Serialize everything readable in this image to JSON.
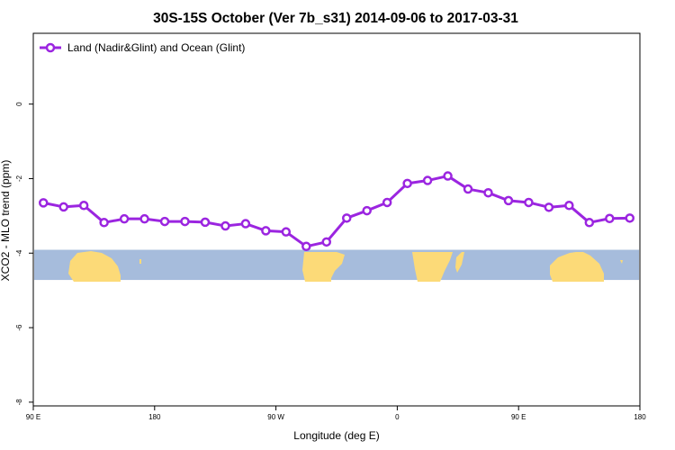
{
  "chart_data": {
    "type": "line",
    "title": "30S-15S October (Ver 7b_s31)   2014-09-06 to 2017-03-31",
    "xlabel": "Longitude (deg E)",
    "ylabel": "XCO2 - MLO trend (ppm)",
    "x_ticks": [
      {
        "value": 90,
        "label": "90 E"
      },
      {
        "value": 180,
        "label": "180"
      },
      {
        "value": 270,
        "label": "90 W"
      },
      {
        "value": 360,
        "label": "0"
      },
      {
        "value": 450,
        "label": "90 E"
      },
      {
        "value": 540,
        "label": "180"
      }
    ],
    "y_ticks": [
      {
        "value": 0,
        "label": "0"
      },
      {
        "value": -2,
        "label": "-2"
      },
      {
        "value": -4,
        "label": "-4"
      },
      {
        "value": -6,
        "label": "-6"
      },
      {
        "value": -8,
        "label": "-8"
      }
    ],
    "xlim": [
      90,
      540
    ],
    "ylim": [
      -8.1,
      1.9
    ],
    "grid": false,
    "legend_position": "top-left",
    "series": [
      {
        "name": "Land (Nadir&Glint) and Ocean (Glint)",
        "color": "#9b25e0",
        "marker": "open-circle",
        "x": [
          97.5,
          112.5,
          127.5,
          142.5,
          157.5,
          172.5,
          187.5,
          202.5,
          217.5,
          232.5,
          247.5,
          262.5,
          277.5,
          292.5,
          307.5,
          322.5,
          337.5,
          352.5,
          367.5,
          382.5,
          397.5,
          412.5,
          427.5,
          442.5,
          457.5,
          472.5,
          487.5,
          502.5,
          517.5,
          532.5
        ],
        "values": [
          -2.65,
          -2.76,
          -2.72,
          -3.18,
          -3.08,
          -3.08,
          -3.15,
          -3.15,
          -3.17,
          -3.27,
          -3.21,
          -3.4,
          -3.43,
          -3.82,
          -3.7,
          -3.06,
          -2.86,
          -2.64,
          -2.13,
          -2.05,
          -1.93,
          -2.28,
          -2.38,
          -2.59,
          -2.64,
          -2.77,
          -2.72,
          -3.18,
          -3.07,
          -3.06
        ]
      }
    ],
    "map_band": {
      "y_range": [
        -3.91,
        -4.72
      ],
      "ocean_color": "#a6bcdc",
      "land_color": "#fcda78"
    }
  }
}
